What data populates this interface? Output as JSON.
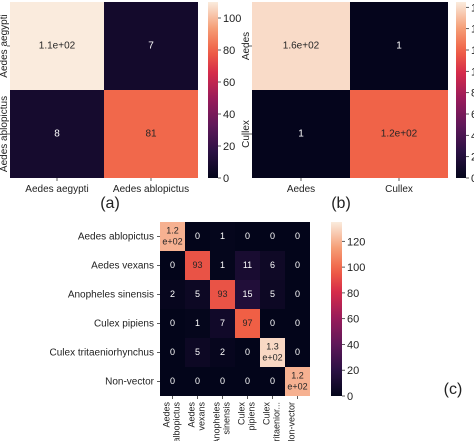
{
  "chart_data": [
    {
      "id": "a",
      "type": "heatmap",
      "panel_label": "(a)",
      "x_tick_labels": [
        "Aedes aegypti",
        "Aedes ablopictus"
      ],
      "y_tick_labels": [
        "Aedes aegypti",
        "Aedes ablopictus"
      ],
      "values": [
        [
          110,
          7
        ],
        [
          8,
          81
        ]
      ],
      "cell_labels": [
        [
          "1.1e+02",
          "7"
        ],
        [
          "8",
          "81"
        ]
      ],
      "colorbar": {
        "min": 0,
        "max": 110,
        "ticks": [
          0,
          20,
          40,
          60,
          80,
          100
        ]
      }
    },
    {
      "id": "b",
      "type": "heatmap",
      "panel_label": "(b)",
      "x_tick_labels": [
        "Aedes",
        "Cullex"
      ],
      "y_tick_labels": [
        "Aedes",
        "Cullex"
      ],
      "values": [
        [
          160,
          1
        ],
        [
          1,
          120
        ]
      ],
      "cell_labels": [
        [
          "1.6e+02",
          "1"
        ],
        [
          "1",
          "1.2e+02"
        ]
      ],
      "colorbar": {
        "min": 0,
        "max": 165,
        "ticks": [
          0,
          20,
          40,
          60,
          80,
          100,
          120,
          140,
          160
        ]
      }
    },
    {
      "id": "c",
      "type": "heatmap",
      "panel_label": "(c)",
      "x_tick_labels": [
        "Aedes albopictus",
        "Aedes vexans",
        "Anopheles sinensis",
        "Culex pipiens",
        "Culex tritaenior...",
        "Non-vector"
      ],
      "y_tick_labels": [
        "Aedes ablopictus",
        "Aedes vexans",
        "Anopheles sinensis",
        "Culex pipiens",
        "Culex tritaeniorhynchus",
        "Non-vector"
      ],
      "values": [
        [
          120,
          0,
          1,
          0,
          0,
          0
        ],
        [
          0,
          93,
          1,
          11,
          6,
          0
        ],
        [
          2,
          5,
          93,
          15,
          5,
          0
        ],
        [
          0,
          1,
          7,
          97,
          0,
          0
        ],
        [
          0,
          5,
          2,
          0,
          130,
          0
        ],
        [
          0,
          0,
          0,
          0,
          0,
          120
        ]
      ],
      "cell_labels": [
        [
          "1.2 e+02",
          "0",
          "1",
          "0",
          "0",
          "0"
        ],
        [
          "0",
          "93",
          "1",
          "11",
          "6",
          "0"
        ],
        [
          "2",
          "5",
          "93",
          "15",
          "5",
          "0"
        ],
        [
          "0",
          "1",
          "7",
          "97",
          "0",
          "0"
        ],
        [
          "0",
          "5",
          "2",
          "0",
          "1.3 e+02",
          "0"
        ],
        [
          "0",
          "0",
          "0",
          "0",
          "0",
          "1.2 e+02"
        ]
      ],
      "colorbar": {
        "min": 0,
        "max": 135,
        "ticks": [
          0,
          20,
          40,
          60,
          80,
          100,
          120
        ]
      }
    }
  ]
}
